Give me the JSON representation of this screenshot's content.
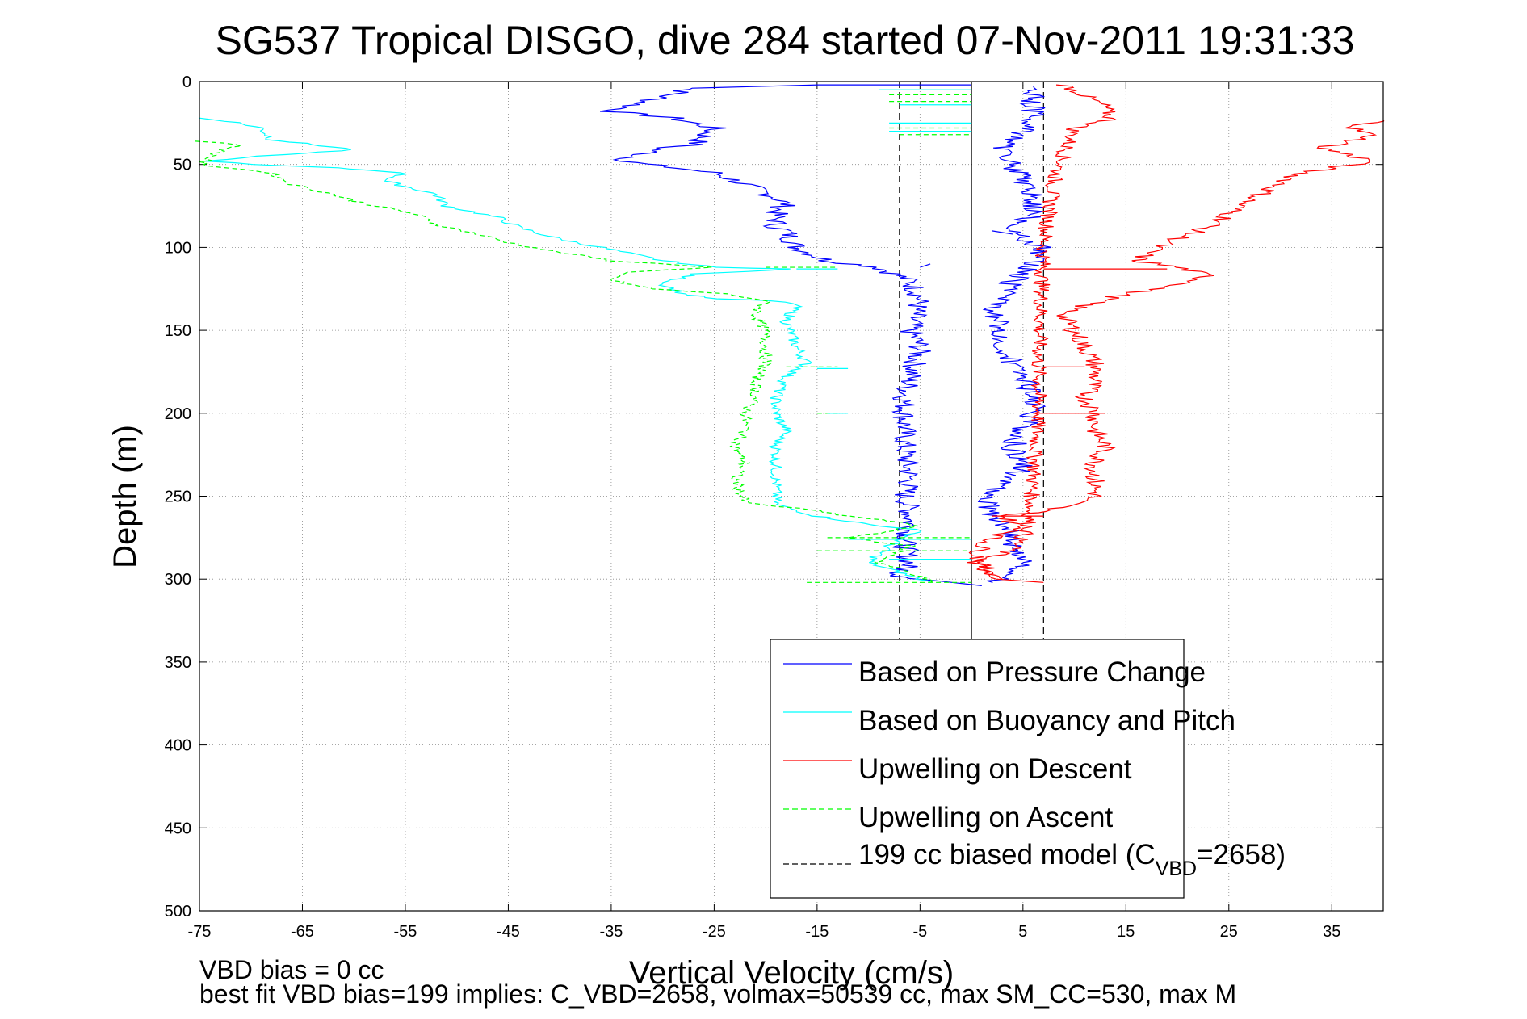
{
  "chart_data": {
    "type": "line",
    "title": "SG537 Tropical DISGO, dive 284 started 07-Nov-2011 19:31:33",
    "xlabel": "Vertical Velocity (cm/s)",
    "ylabel": "Depth (m)",
    "xlim": [
      -75,
      40
    ],
    "ylim": [
      0,
      500
    ],
    "y_reversed": true,
    "x_ticks": [
      -75,
      -65,
      -55,
      -45,
      -35,
      -25,
      -15,
      -5,
      5,
      15,
      25,
      35
    ],
    "y_ticks": [
      0,
      50,
      100,
      150,
      200,
      250,
      300,
      350,
      400,
      450,
      500
    ],
    "grid": true,
    "legend_position": "bottom-right",
    "legend": [
      {
        "label": "Based on Pressure Change",
        "color": "#0000ff",
        "dash": "solid"
      },
      {
        "label": "Based on Buoyancy and Pitch",
        "color": "#00ffff",
        "dash": "solid"
      },
      {
        "label": "Upwelling on Descent",
        "color": "#ff0000",
        "dash": "solid"
      },
      {
        "label": "Upwelling on Ascent",
        "color": "#00ff00",
        "dash": "dashed"
      },
      {
        "label_pre": "199 cc biased model (C",
        "label_sub": "VBD",
        "label_post": "=2658)",
        "color": "#000000",
        "dash": "dashed"
      }
    ],
    "series": [
      {
        "name": "Based on Pressure Change",
        "color": "#0000ff",
        "dash": "solid",
        "jitter": 1.2,
        "points": [
          [
            0,
            2
          ],
          [
            -14,
            2
          ],
          [
            -27,
            4
          ],
          [
            -35,
            18
          ],
          [
            -29,
            22
          ],
          [
            -25,
            28
          ],
          [
            -27,
            38
          ],
          [
            -30,
            40
          ],
          [
            -34,
            48
          ],
          [
            -25,
            55
          ],
          [
            -22,
            62
          ],
          [
            -19,
            70
          ],
          [
            -18,
            74
          ],
          [
            -19,
            78
          ],
          [
            -19,
            88
          ],
          [
            -18,
            90
          ],
          [
            -17,
            100
          ],
          [
            -14,
            108
          ],
          [
            -9,
            112
          ],
          [
            -6,
            120
          ],
          [
            -5,
            130
          ],
          [
            -5.5,
            140
          ],
          [
            -6,
            150
          ],
          [
            -5,
            160
          ],
          [
            -5.5,
            170
          ],
          [
            -6,
            180
          ],
          [
            -6.5,
            190
          ],
          [
            -6.5,
            200
          ],
          [
            -6.5,
            220
          ],
          [
            -6,
            240
          ],
          [
            -6.5,
            250
          ],
          [
            -6,
            260
          ],
          [
            -6,
            270
          ],
          [
            -6.5,
            280
          ],
          [
            -6,
            290
          ],
          [
            -7,
            298
          ],
          [
            -2,
            302
          ],
          [
            1,
            304
          ]
        ]
      },
      {
        "name": "Based on Pressure Change",
        "color": "#0000ff",
        "dash": "solid",
        "jitter": 1.2,
        "points": [
          [
            1,
            302
          ],
          [
            4,
            300
          ],
          [
            5,
            290
          ],
          [
            4,
            280
          ],
          [
            4,
            270
          ],
          [
            2,
            260
          ],
          [
            1,
            250
          ],
          [
            4,
            240
          ],
          [
            5,
            230
          ],
          [
            4,
            220
          ],
          [
            5,
            210
          ],
          [
            6,
            200
          ],
          [
            6,
            190
          ],
          [
            5,
            180
          ],
          [
            4,
            170
          ],
          [
            3,
            160
          ],
          [
            3,
            150
          ],
          [
            2,
            140
          ],
          [
            3,
            130
          ],
          [
            4,
            120
          ],
          [
            6,
            110
          ],
          [
            7,
            100
          ],
          [
            5,
            95
          ],
          [
            4,
            90
          ],
          [
            6,
            80
          ],
          [
            6,
            70
          ],
          [
            5,
            60
          ],
          [
            4,
            50
          ],
          [
            3,
            40
          ],
          [
            5,
            30
          ],
          [
            6,
            20
          ],
          [
            6,
            10
          ],
          [
            6,
            3
          ]
        ]
      },
      {
        "name": "Based on Buoyancy and Pitch",
        "color": "#00ffff",
        "dash": "solid",
        "jitter": 0.6,
        "points": [
          [
            -75,
            22
          ],
          [
            -72,
            24
          ],
          [
            -69,
            28
          ],
          [
            -68,
            35
          ],
          [
            -64,
            38
          ],
          [
            -60,
            41
          ],
          [
            -67,
            44
          ],
          [
            -71,
            46
          ],
          [
            -74,
            48
          ],
          [
            -70,
            50
          ],
          [
            -62,
            52
          ],
          [
            -55,
            55
          ],
          [
            -57,
            60
          ],
          [
            -52,
            68
          ],
          [
            -51,
            75
          ],
          [
            -46,
            82
          ],
          [
            -44,
            88
          ],
          [
            -40,
            95
          ],
          [
            -36,
            100
          ],
          [
            -30,
            108
          ],
          [
            -25,
            112
          ],
          [
            -17,
            113
          ],
          [
            -27,
            116
          ],
          [
            -30,
            122
          ],
          [
            -28,
            128
          ],
          [
            -25,
            131
          ],
          [
            -20,
            132
          ],
          [
            -17,
            134
          ],
          [
            -18,
            145
          ],
          [
            -17,
            160
          ],
          [
            -16,
            170
          ],
          [
            -18,
            178
          ],
          [
            -19,
            190
          ],
          [
            -19,
            200
          ],
          [
            -18,
            210
          ],
          [
            -19,
            220
          ],
          [
            -19,
            240
          ],
          [
            -19,
            255
          ],
          [
            -15,
            262
          ],
          [
            -12,
            265
          ],
          [
            -9,
            268
          ],
          [
            -5,
            270
          ],
          [
            -8,
            280
          ],
          [
            -10,
            290
          ],
          [
            -5,
            300
          ],
          [
            -4,
            302
          ]
        ]
      },
      {
        "name": "Upwelling on Descent",
        "color": "#ff0000",
        "dash": "solid",
        "jitter": 0.8,
        "points": [
          [
            9,
            2
          ],
          [
            13,
            15
          ],
          [
            13.5,
            23
          ],
          [
            10,
            28
          ],
          [
            8,
            60
          ],
          [
            7,
            100
          ],
          [
            6.5,
            170
          ],
          [
            6.5,
            200
          ],
          [
            6,
            240
          ],
          [
            5.5,
            270
          ],
          [
            4,
            282
          ],
          [
            0.5,
            290
          ],
          [
            2,
            300
          ],
          [
            7,
            302
          ]
        ]
      },
      {
        "name": "Upwelling on Descent",
        "color": "#ff0000",
        "dash": "solid",
        "jitter": 1.0,
        "points": [
          [
            40,
            23
          ],
          [
            37,
            28
          ],
          [
            39,
            33
          ],
          [
            34,
            40
          ],
          [
            39,
            48
          ],
          [
            32,
            55
          ],
          [
            29,
            65
          ],
          [
            26,
            75
          ],
          [
            24,
            85
          ],
          [
            20,
            95
          ],
          [
            18,
            100
          ],
          [
            16,
            108
          ],
          [
            20,
            112
          ],
          [
            23,
            117
          ],
          [
            21,
            122
          ],
          [
            15,
            128
          ],
          [
            12,
            133
          ],
          [
            10,
            137
          ],
          [
            9,
            142
          ],
          [
            10,
            150
          ],
          [
            11,
            160
          ],
          [
            12,
            170
          ],
          [
            12,
            180
          ],
          [
            11,
            190
          ],
          [
            12,
            200
          ],
          [
            12,
            210
          ],
          [
            13,
            220
          ],
          [
            12,
            230
          ],
          [
            12,
            240
          ],
          [
            12,
            250
          ],
          [
            9,
            256
          ],
          [
            6,
            260
          ],
          [
            3,
            262
          ],
          [
            5,
            270
          ],
          [
            2,
            275
          ],
          [
            1,
            280
          ],
          [
            0.5,
            290
          ],
          [
            3,
            300
          ]
        ]
      },
      {
        "name": "Upwelling on Ascent",
        "color": "#00ff00",
        "dash": "dashed",
        "jitter": 0.6,
        "points": [
          [
            -75,
            36
          ],
          [
            -71,
            38
          ],
          [
            -73,
            42
          ],
          [
            -75,
            50
          ],
          [
            -68,
            55
          ],
          [
            -66,
            62
          ],
          [
            -62,
            68
          ],
          [
            -60,
            72
          ],
          [
            -57,
            76
          ],
          [
            -54,
            80
          ],
          [
            -52,
            86
          ],
          [
            -48,
            92
          ],
          [
            -45,
            97
          ],
          [
            -41,
            102
          ],
          [
            -35,
            108
          ],
          [
            -25,
            112
          ],
          [
            -34,
            115
          ],
          [
            -35,
            120
          ],
          [
            -31,
            125
          ],
          [
            -24,
            128
          ],
          [
            -22,
            130
          ],
          [
            -20,
            132
          ],
          [
            -21,
            140
          ],
          [
            -20,
            150
          ],
          [
            -20,
            160
          ],
          [
            -20,
            170
          ],
          [
            -21,
            180
          ],
          [
            -21,
            190
          ],
          [
            -22,
            200
          ],
          [
            -22,
            210
          ],
          [
            -23,
            220
          ],
          [
            -22,
            230
          ],
          [
            -23,
            240
          ],
          [
            -22,
            254
          ],
          [
            -16,
            258
          ],
          [
            -12,
            262
          ],
          [
            -8,
            265
          ],
          [
            -5,
            268
          ],
          [
            -12,
            275
          ],
          [
            -6,
            280
          ],
          [
            -9,
            290
          ],
          [
            -5,
            298
          ],
          [
            -4,
            302
          ]
        ]
      }
    ],
    "spikes": [
      {
        "color": "#00ff00",
        "dash": "dashed",
        "segments": [
          [
            -8,
            8,
            0,
            8
          ],
          [
            -8,
            12,
            0,
            12
          ],
          [
            -8,
            28,
            0,
            28
          ],
          [
            -7,
            32,
            0,
            32
          ],
          [
            -20,
            112,
            -13,
            112
          ],
          [
            -18,
            172,
            -13,
            172
          ],
          [
            -15,
            200,
            -13,
            200
          ],
          [
            -14,
            275,
            0,
            275
          ],
          [
            -15,
            283,
            0,
            283
          ],
          [
            -16,
            302,
            0,
            302
          ]
        ]
      },
      {
        "color": "#00ffff",
        "dash": "solid",
        "segments": [
          [
            -9,
            5,
            0,
            5
          ],
          [
            -7,
            14,
            0,
            14
          ],
          [
            -8,
            25,
            0,
            25
          ],
          [
            -8,
            30,
            0,
            30
          ],
          [
            -17,
            113,
            -13,
            113
          ],
          [
            -15,
            173,
            -12,
            173
          ],
          [
            -14,
            200,
            -12,
            200
          ],
          [
            -12,
            276,
            0,
            276
          ],
          [
            -8,
            288,
            0,
            288
          ]
        ]
      },
      {
        "color": "#0000ff",
        "dash": "solid",
        "segments": [
          [
            -5,
            112,
            -4,
            110
          ],
          [
            2,
            90,
            4,
            92
          ]
        ]
      },
      {
        "color": "#ff0000",
        "dash": "solid",
        "segments": [
          [
            7,
            113,
            19,
            113
          ],
          [
            7,
            172,
            11,
            172
          ],
          [
            6,
            200,
            13,
            200
          ],
          [
            2,
            262,
            7,
            262
          ]
        ]
      }
    ],
    "model_lines": [
      {
        "x": -7,
        "color": "#000000",
        "dash": "dashed",
        "y_range": [
          0,
          340
        ]
      },
      {
        "x": 7,
        "color": "#000000",
        "dash": "dashed",
        "y_range": [
          0,
          340
        ]
      }
    ],
    "zero_line": {
      "x": 0,
      "color": "#000000",
      "dash": "solid",
      "y_range": [
        0,
        340
      ]
    }
  },
  "footer": {
    "line1": "VBD bias = 0 cc",
    "line2": "best fit VBD bias=199 implies: C_VBD=2658, volmax=50539 cc, max SM_CC=530, max M"
  }
}
